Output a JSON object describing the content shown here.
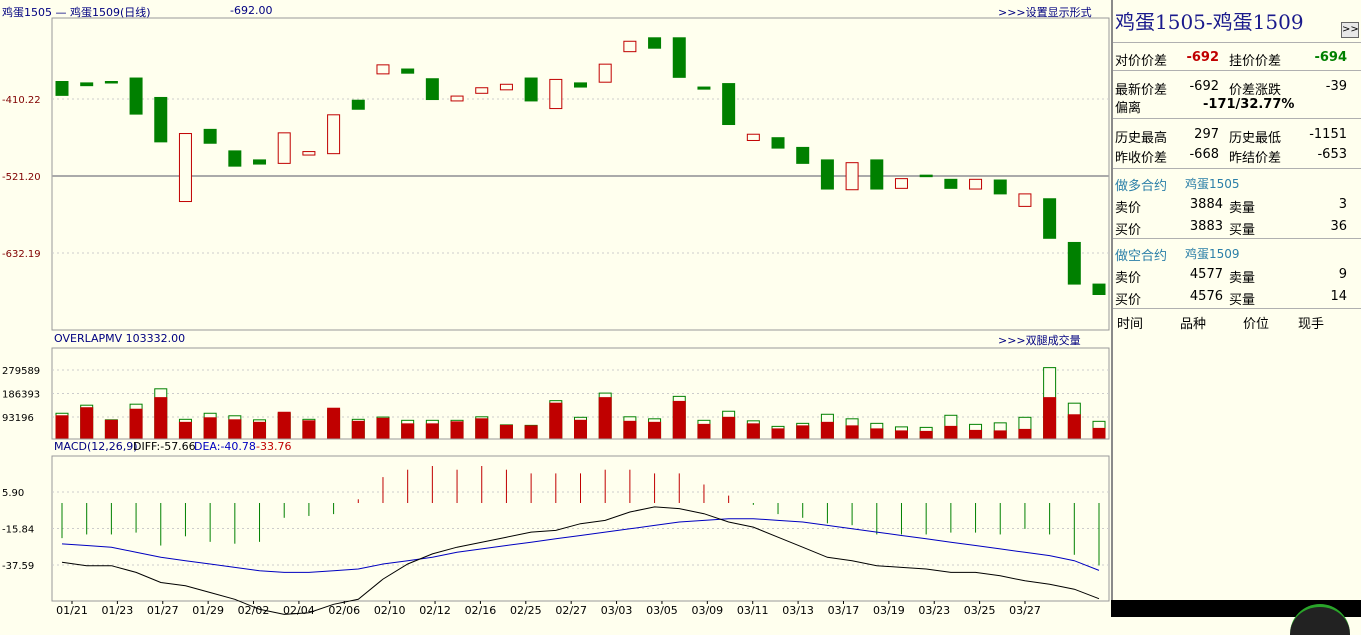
{
  "top_header": {
    "title_pair": "鸡蛋1505 — 鸡蛋1509(日线)",
    "value": "-692.00",
    "link": ">>>设置显示形式"
  },
  "volume_header": {
    "label": "OVERLAPMV 103332.00",
    "link": ">>>双腿成交量"
  },
  "macd_header": {
    "label": "MACD(12,26,9)",
    "diff": "DIFF:-57.66",
    "dea": "DEA:-40.78",
    "val": "-33.76"
  },
  "price_axis": [
    "-410.22",
    "-521.20",
    "-632.19"
  ],
  "volume_axis": [
    "279589",
    "186393",
    "93196"
  ],
  "macd_axis": [
    "5.90",
    "-15.84",
    "-37.59"
  ],
  "date_labels": [
    "01/21",
    "01/23",
    "01/27",
    "01/29",
    "02/02",
    "02/04",
    "02/06",
    "02/10",
    "02/12",
    "02/16",
    "02/25",
    "02/27",
    "03/03",
    "03/05",
    "03/09",
    "03/11",
    "03/13",
    "03/17",
    "03/19",
    "03/23",
    "03/25",
    "03/27"
  ],
  "colors": {
    "up": "#c00000",
    "down": "#008000",
    "bg": "#ffffee",
    "diff_line": "#000000",
    "dea_line": "#0000c0",
    "grid": "#bbbbbb"
  },
  "panel": {
    "title": "鸡蛋1505-鸡蛋1509",
    "expand": ">>",
    "rows": {
      "spread_bid_label": "对价价差",
      "spread_bid_val": "-692",
      "spread_ask_label": "挂价价差",
      "spread_ask_val": "-694",
      "last_label": "最新价差",
      "last_val": "-692",
      "chg_label": "价差涨跌",
      "chg_val": "-39",
      "dev_label": "偏离",
      "dev_val": "-171/32.77%",
      "hist_high_label": "历史最高",
      "hist_high_val": "297",
      "hist_low_label": "历史最低",
      "hist_low_val": "-1151",
      "prev_close_label": "昨收价差",
      "prev_close_val": "-668",
      "prev_settle_label": "昨结价差",
      "prev_settle_val": "-653"
    },
    "long_leg": {
      "label": "做多合约",
      "contract": "鸡蛋1505",
      "ask_label": "卖价",
      "ask": "3884",
      "ask_qty_label": "卖量",
      "ask_qty": "3",
      "bid_label": "买价",
      "bid": "3883",
      "bid_qty_label": "买量",
      "bid_qty": "36"
    },
    "short_leg": {
      "label": "做空合约",
      "contract": "鸡蛋1509",
      "ask_label": "卖价",
      "ask": "4577",
      "ask_qty_label": "卖量",
      "ask_qty": "9",
      "bid_label": "买价",
      "bid": "4576",
      "bid_qty_label": "买量",
      "bid_qty": "14"
    },
    "ticks_header": [
      "时间",
      "品种",
      "价位",
      "现手"
    ]
  },
  "chart_data": {
    "type": "candlestick",
    "price": {
      "ticks": [
        -410.22,
        -521.2,
        -632.19
      ],
      "reference_line": -521.2,
      "candles": [
        {
          "o": -385,
          "c": -405
        },
        {
          "o": -387,
          "c": -391
        },
        {
          "o": -385,
          "c": -387
        },
        {
          "o": -380,
          "c": -432
        },
        {
          "o": -408,
          "c": -472
        },
        {
          "o": -558,
          "c": -460
        },
        {
          "o": -454,
          "c": -474
        },
        {
          "o": -485,
          "c": -507
        },
        {
          "o": -498,
          "c": -504
        },
        {
          "o": -503,
          "c": -459
        },
        {
          "o": -491,
          "c": -486
        },
        {
          "o": -489,
          "c": -433
        },
        {
          "o": -412,
          "c": -425
        },
        {
          "o": -374,
          "c": -361
        },
        {
          "o": -367,
          "c": -373
        },
        {
          "o": -381,
          "c": -411
        },
        {
          "o": -413,
          "c": -406
        },
        {
          "o": -402,
          "c": -394
        },
        {
          "o": -397,
          "c": -389
        },
        {
          "o": -380,
          "c": -413
        },
        {
          "o": -424,
          "c": -382
        },
        {
          "o": -387,
          "c": -393
        },
        {
          "o": -386,
          "c": -360
        },
        {
          "o": -342,
          "c": -327
        },
        {
          "o": -322,
          "c": -337
        },
        {
          "o": -322,
          "c": -379
        },
        {
          "o": -393,
          "c": -396
        },
        {
          "o": -388,
          "c": -447
        },
        {
          "o": -470,
          "c": -461
        },
        {
          "o": -466,
          "c": -481
        },
        {
          "o": -480,
          "c": -503
        },
        {
          "o": -498,
          "c": -540
        },
        {
          "o": -541,
          "c": -502
        },
        {
          "o": -498,
          "c": -540
        },
        {
          "o": -539,
          "c": -525
        },
        {
          "o": -520,
          "c": -521
        },
        {
          "o": -526,
          "c": -539
        },
        {
          "o": -540,
          "c": -526
        },
        {
          "o": -527,
          "c": -547
        },
        {
          "o": -565,
          "c": -547
        },
        {
          "o": -554,
          "c": -611
        },
        {
          "o": -617,
          "c": -677
        },
        {
          "o": -677,
          "c": -692
        }
      ]
    },
    "volume": {
      "ticks": [
        93196,
        186393,
        279589
      ],
      "bars": [
        {
          "leg1": 98000,
          "leg2": 108000
        },
        {
          "leg1": 130000,
          "leg2": 140000
        },
        {
          "leg1": 80000,
          "leg2": 82000
        },
        {
          "leg1": 124000,
          "leg2": 144000
        },
        {
          "leg1": 170000,
          "leg2": 205000
        },
        {
          "leg1": 72000,
          "leg2": 84000
        },
        {
          "leg1": 90000,
          "leg2": 108000
        },
        {
          "leg1": 82000,
          "leg2": 98000
        },
        {
          "leg1": 72000,
          "leg2": 82000
        },
        {
          "leg1": 112000,
          "leg2": 108000
        },
        {
          "leg1": 78000,
          "leg2": 84000
        },
        {
          "leg1": 128000,
          "leg2": 120000
        },
        {
          "leg1": 76000,
          "leg2": 84000
        },
        {
          "leg1": 88000,
          "leg2": 93000
        },
        {
          "leg1": 66000,
          "leg2": 80000
        },
        {
          "leg1": 66000,
          "leg2": 80000
        },
        {
          "leg1": 74000,
          "leg2": 80000
        },
        {
          "leg1": 86000,
          "leg2": 94000
        },
        {
          "leg1": 60000,
          "leg2": 62000
        },
        {
          "leg1": 58000,
          "leg2": 60000
        },
        {
          "leg1": 148000,
          "leg2": 158000
        },
        {
          "leg1": 80000,
          "leg2": 92000
        },
        {
          "leg1": 170000,
          "leg2": 188000
        },
        {
          "leg1": 76000,
          "leg2": 94000
        },
        {
          "leg1": 72000,
          "leg2": 86000
        },
        {
          "leg1": 155000,
          "leg2": 175000
        },
        {
          "leg1": 64000,
          "leg2": 80000
        },
        {
          "leg1": 92000,
          "leg2": 116000
        },
        {
          "leg1": 66000,
          "leg2": 78000
        },
        {
          "leg1": 46000,
          "leg2": 56000
        },
        {
          "leg1": 58000,
          "leg2": 68000
        },
        {
          "leg1": 72000,
          "leg2": 104000
        },
        {
          "leg1": 58000,
          "leg2": 86000
        },
        {
          "leg1": 46000,
          "leg2": 68000
        },
        {
          "leg1": 38000,
          "leg2": 54000
        },
        {
          "leg1": 36000,
          "leg2": 52000
        },
        {
          "leg1": 56000,
          "leg2": 100000
        },
        {
          "leg1": 40000,
          "leg2": 64000
        },
        {
          "leg1": 38000,
          "leg2": 70000
        },
        {
          "leg1": 44000,
          "leg2": 92000
        },
        {
          "leg1": 170000,
          "leg2": 289000
        },
        {
          "leg1": 102000,
          "leg2": 148000
        },
        {
          "leg1": 48000,
          "leg2": 76000
        }
      ]
    },
    "macd": {
      "ticks": [
        5.9,
        -15.84,
        -37.59
      ],
      "hist": [
        -19,
        -17,
        -17,
        -16,
        -23,
        -18,
        -21,
        -22,
        -21,
        -8,
        -7,
        -6,
        2,
        14,
        18,
        20,
        18,
        20,
        18,
        16,
        16,
        16,
        18,
        18,
        16,
        16,
        10,
        4,
        -1,
        -6,
        -8,
        -11,
        -12,
        -17,
        -17,
        -17,
        -16,
        -16,
        -17,
        -14,
        -17,
        -28,
        -33.76
      ],
      "diff": [
        -36,
        -38,
        -38,
        -42,
        -48,
        -50,
        -54,
        -58,
        -64,
        -67,
        -66,
        -61,
        -58,
        -46,
        -37,
        -31,
        -27,
        -24,
        -21,
        -18,
        -17,
        -13,
        -11,
        -6,
        -3,
        -4,
        -7,
        -12,
        -15,
        -21,
        -27,
        -33,
        -35,
        -38,
        -39,
        -40,
        -42,
        -42,
        -44,
        -47,
        -49,
        -52,
        -57.66
      ],
      "dea": [
        -25,
        -26,
        -27,
        -30,
        -33,
        -35,
        -37,
        -39,
        -41,
        -42,
        -42,
        -41,
        -40,
        -37,
        -35,
        -33,
        -30,
        -28,
        -26,
        -24,
        -22,
        -20,
        -18,
        -16,
        -14,
        -12,
        -11,
        -10,
        -10,
        -11,
        -12,
        -14,
        -16,
        -18,
        -20,
        -22,
        -24,
        -26,
        -28,
        -30,
        -32,
        -35,
        -40.78
      ]
    }
  }
}
